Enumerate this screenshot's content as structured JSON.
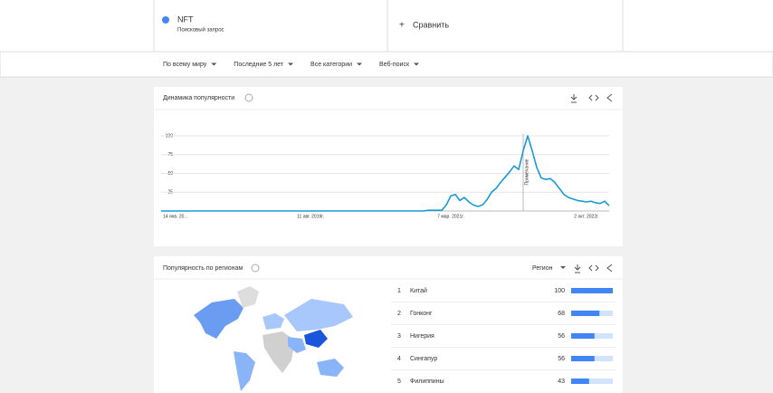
{
  "header": {
    "term": "NFT",
    "term_subtitle": "Поисковый запрос",
    "compare": "Сравнить"
  },
  "filters": [
    "По всему миру",
    "Последние 5 лет",
    "Все категории",
    "Веб-поиск"
  ],
  "chart_data": {
    "type": "line",
    "title": "Динамика популярности",
    "categories": [
      "14 янв. 20...",
      null,
      null,
      null,
      null,
      null,
      null,
      null,
      null,
      null,
      null,
      null,
      null,
      null,
      null,
      null,
      null,
      null,
      null,
      null,
      null,
      null,
      null,
      null,
      null,
      null,
      null,
      null,
      null,
      null,
      null,
      null,
      null,
      "11 авг. 2019г.",
      null,
      null,
      null,
      null,
      null,
      null,
      null,
      null,
      null,
      null,
      null,
      null,
      null,
      null,
      null,
      null,
      null,
      null,
      null,
      null,
      null,
      null,
      null,
      null,
      null,
      null,
      null,
      null,
      null,
      null,
      "7 мар. 2021г.",
      null,
      null,
      null,
      null,
      null,
      null,
      null,
      null,
      null,
      null,
      null,
      null,
      null,
      null,
      null,
      null,
      null,
      null,
      null,
      null,
      null,
      null,
      null,
      null,
      null,
      null,
      null,
      null,
      null,
      "2 окт. 2022г.",
      null,
      null,
      null,
      null,
      null
    ],
    "values": [
      0,
      0,
      0,
      0,
      0,
      0,
      0,
      0,
      0,
      0,
      0,
      0,
      0,
      0,
      0,
      0,
      0,
      0,
      0,
      0,
      0,
      0,
      0,
      0,
      0,
      0,
      0,
      0,
      0,
      0,
      0,
      0,
      0,
      0,
      0,
      0,
      0,
      0,
      0,
      0,
      0,
      0,
      0,
      0,
      0,
      0,
      0,
      0,
      0,
      0,
      0,
      0,
      0,
      0,
      0,
      0,
      0,
      0,
      0,
      1,
      1,
      1,
      1,
      8,
      20,
      22,
      14,
      18,
      12,
      8,
      6,
      8,
      15,
      25,
      30,
      38,
      45,
      52,
      60,
      55,
      80,
      100,
      80,
      58,
      44,
      42,
      43,
      38,
      30,
      22,
      18,
      16,
      14,
      13,
      12,
      13,
      11,
      10,
      13,
      7
    ],
    "color": "#1a9bd7",
    "ylim": [
      0,
      100
    ],
    "yticks": [
      25,
      50,
      75,
      100
    ],
    "grid": true,
    "annotation": {
      "label": "Примечание",
      "at": 80
    }
  },
  "regions": {
    "title": "Популярность по регионам",
    "mode": "Регион",
    "items": [
      {
        "rank": 1,
        "name": "Китай",
        "value": 100
      },
      {
        "rank": 2,
        "name": "Гонконг",
        "value": 68
      },
      {
        "rank": 3,
        "name": "Нигерия",
        "value": 56
      },
      {
        "rank": 4,
        "name": "Сингапур",
        "value": 56
      },
      {
        "rank": 5,
        "name": "Филиппины",
        "value": 43
      }
    ]
  }
}
